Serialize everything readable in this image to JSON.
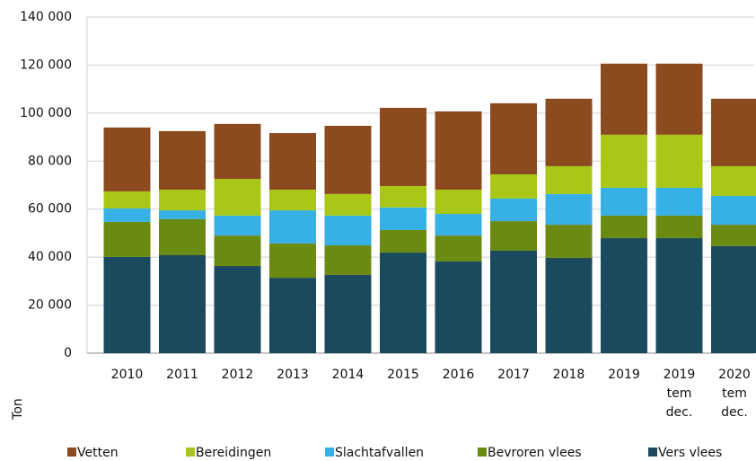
{
  "chart_data": {
    "type": "bar",
    "stacked": true,
    "y_label": "Ton",
    "categories": [
      "2010",
      "2011",
      "2012",
      "2013",
      "2014",
      "2015",
      "2016",
      "2017",
      "2018",
      "2019",
      "2019\ntem\ndec.",
      "2020\ntem\ndec."
    ],
    "series": [
      {
        "name": "Vers vlees",
        "color": "#1b4a5e",
        "values": [
          40100,
          40800,
          36300,
          31400,
          32600,
          41900,
          38200,
          42700,
          39700,
          47900,
          47900,
          44600
        ]
      },
      {
        "name": "Bevroren vlees",
        "color": "#6a8a12",
        "values": [
          14600,
          15000,
          12700,
          14300,
          12300,
          9400,
          10800,
          12300,
          13800,
          9400,
          9400,
          8900
        ]
      },
      {
        "name": "Slachtafvallen",
        "color": "#36b0e5",
        "values": [
          5600,
          3700,
          8300,
          13800,
          12400,
          9400,
          9000,
          9400,
          12800,
          11600,
          11600,
          12000
        ]
      },
      {
        "name": "Bereidingen",
        "color": "#a8c716",
        "values": [
          7100,
          8600,
          15300,
          8600,
          9000,
          8900,
          10100,
          10100,
          11600,
          22100,
          22100,
          12400
        ]
      },
      {
        "name": "Vetten",
        "color": "#8c4a1f",
        "values": [
          26600,
          24400,
          22900,
          23600,
          28400,
          32600,
          32600,
          29600,
          28100,
          29600,
          29600,
          28100
        ]
      }
    ],
    "ylim": [
      0,
      140000
    ],
    "yticks": [
      0,
      {
        "value": 20000,
        "label": "20 000"
      },
      {
        "value": 40000,
        "label": "40 000"
      },
      {
        "value": 60000,
        "label": "60 000"
      },
      {
        "value": 80000,
        "label": "80 000"
      },
      {
        "value": 100000,
        "label": "100 000"
      },
      {
        "value": 120000,
        "label": "120 000"
      },
      {
        "value": 140000,
        "label": "140 000"
      }
    ],
    "grid": true,
    "legend": "bottom"
  }
}
